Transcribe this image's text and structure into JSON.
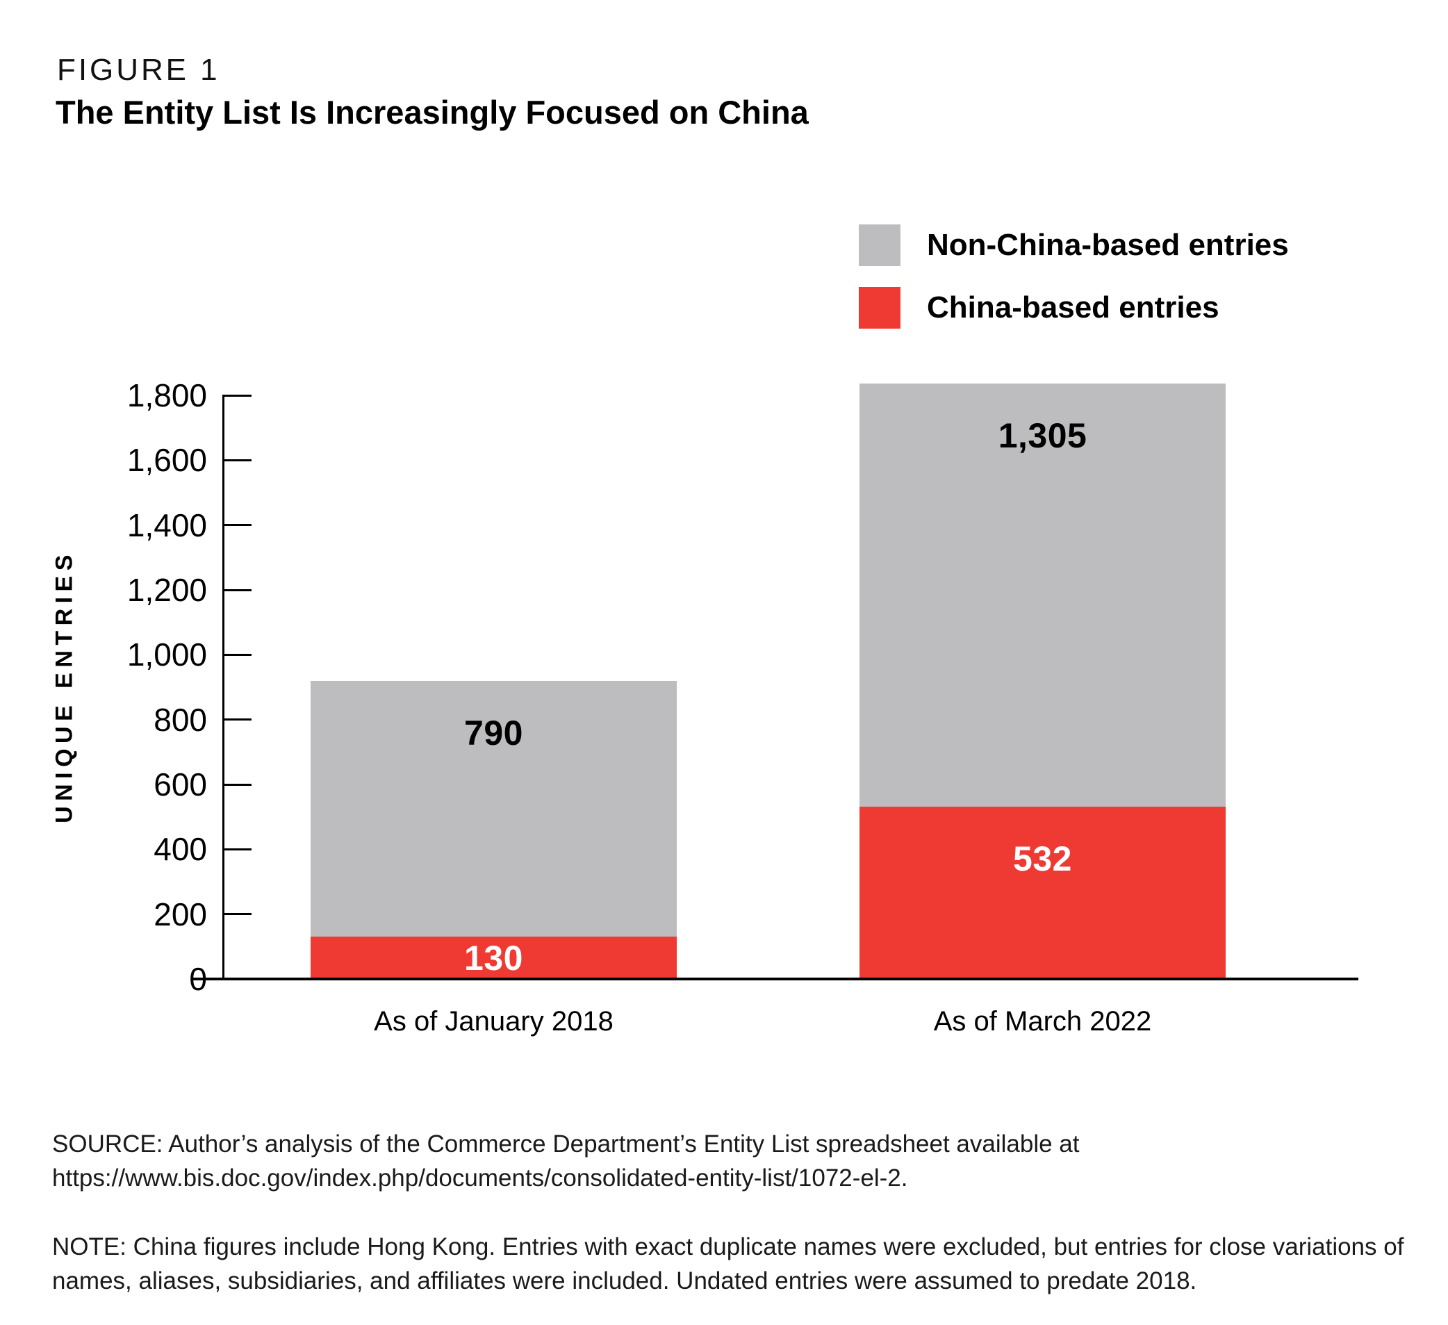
{
  "figure": {
    "kicker": "FIGURE 1",
    "title": "The Entity List Is Increasingly Focused on China"
  },
  "legend": [
    {
      "label": "Non-China-based entries",
      "color": "#BDBDBF"
    },
    {
      "label": "China-based entries",
      "color": "#EE3A33"
    }
  ],
  "chart_data": {
    "type": "bar",
    "stacked": true,
    "title": "The Entity List Is Increasingly Focused on China",
    "categories": [
      "As of January 2018",
      "As of March 2022"
    ],
    "series": [
      {
        "name": "China-based entries",
        "key": "china",
        "color": "#EE3A33",
        "label_color": "#FFFFFF",
        "values": [
          130,
          532
        ],
        "labels": [
          "130",
          "532"
        ]
      },
      {
        "name": "Non-China-based entries",
        "key": "non-china",
        "color": "#BDBDBF",
        "label_color": "#000000",
        "values": [
          790,
          1305
        ],
        "labels": [
          "790",
          "1,305"
        ]
      }
    ],
    "totals": [
      920,
      1837
    ],
    "xlabel": "",
    "ylabel": "UNIQUE ENTRIES",
    "ylim": [
      0,
      1800
    ],
    "ytick_step": 200,
    "yticks": [
      "1,800",
      "1,600",
      "1,400",
      "1,200",
      "1,000",
      "800",
      "600",
      "400",
      "200",
      "0"
    ],
    "grid": false,
    "legend_position": "top-right"
  },
  "source": "SOURCE: Author’s analysis of the Commerce Department’s Entity List spreadsheet available at https://www.bis.doc.gov/index.php/documents/consolidated-entity-list/1072-el-2.",
  "note": "NOTE: China figures include Hong Kong. Entries with exact duplicate names were excluded, but entries for close variations of names, aliases, subsidiaries, and affiliates were included. Undated entries were assumed to predate 2018."
}
